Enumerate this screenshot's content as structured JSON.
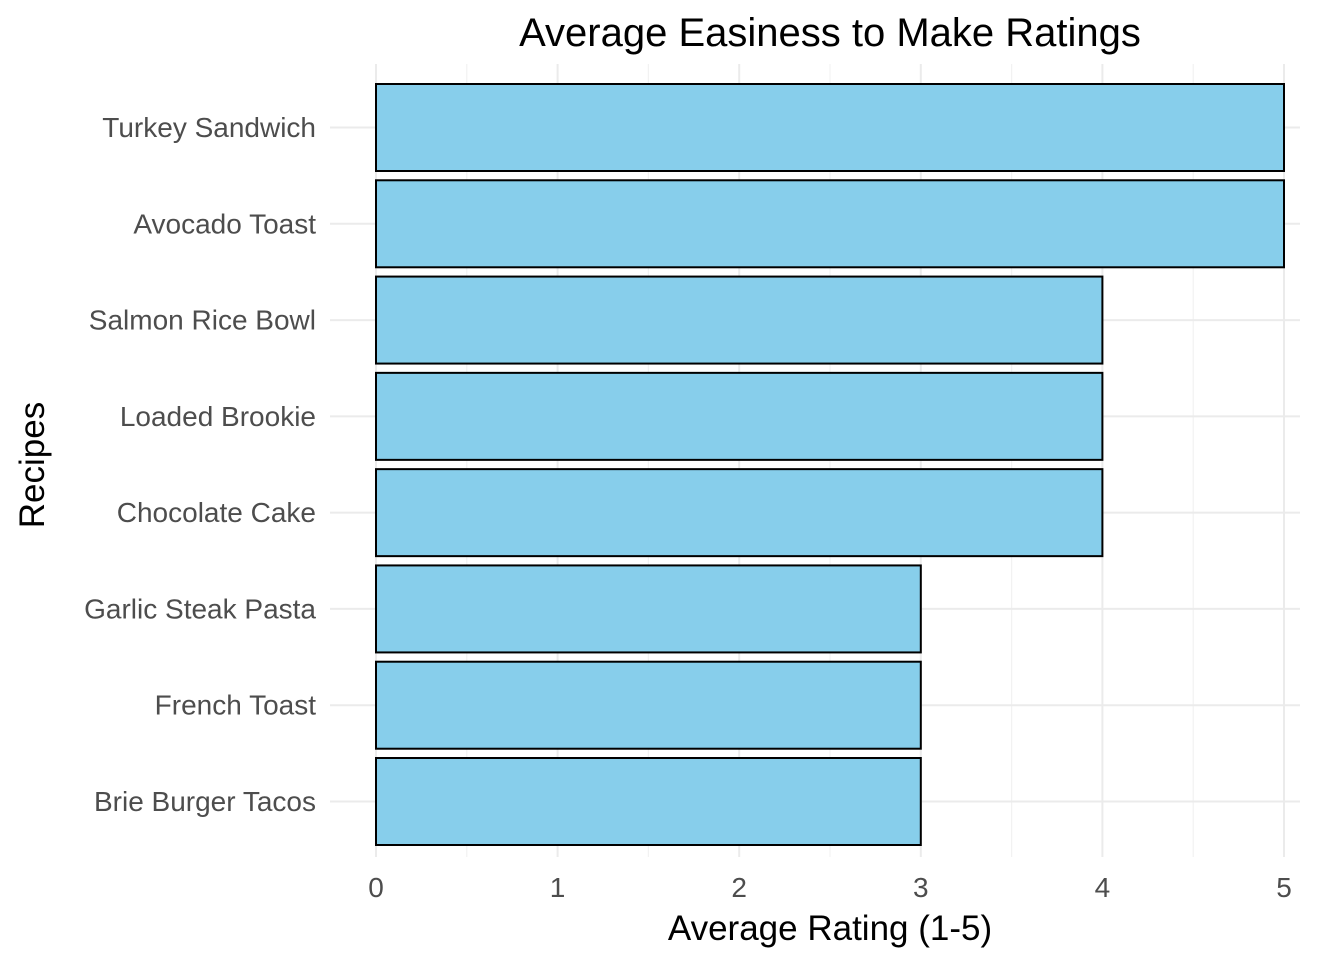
{
  "chart_data": {
    "type": "bar",
    "orientation": "horizontal",
    "title": "Average Easiness to Make Ratings",
    "xlabel": "Average Rating (1-5)",
    "ylabel": "Recipes",
    "categories": [
      "Turkey Sandwich",
      "Avocado Toast",
      "Salmon Rice Bowl",
      "Loaded Brookie",
      "Chocolate Cake",
      "Garlic Steak Pasta",
      "French Toast",
      "Brie Burger Tacos"
    ],
    "values": [
      5,
      5,
      4,
      4,
      4,
      3,
      3,
      3
    ],
    "xlim": [
      0,
      5
    ],
    "xticks": [
      "0",
      "1",
      "2",
      "3",
      "4",
      "5"
    ],
    "grid": true,
    "legend": "none",
    "colors": {
      "bar_fill": "#87CEEB",
      "bar_border": "#000000"
    }
  }
}
